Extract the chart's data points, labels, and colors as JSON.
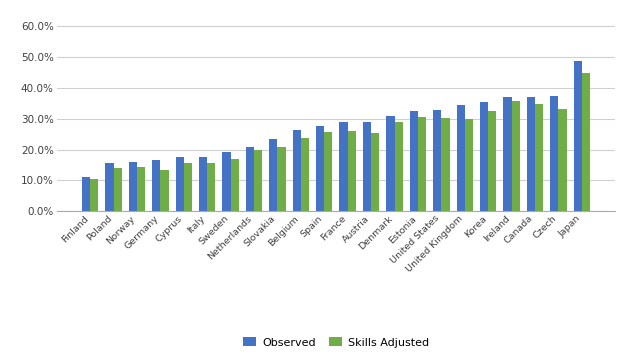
{
  "categories": [
    "Finland",
    "Poland",
    "Norway",
    "Germany",
    "Cyprus",
    "Italy",
    "Sweden",
    "Netherlands",
    "Slovakia",
    "Belgium",
    "Spain",
    "France",
    "Austria",
    "Denmark",
    "Estonia",
    "United States",
    "United Kingdom",
    "Korea",
    "Ireland",
    "Canada",
    "Czech",
    "Japan"
  ],
  "observed": [
    0.112,
    0.157,
    0.158,
    0.167,
    0.176,
    0.176,
    0.193,
    0.207,
    0.233,
    0.265,
    0.275,
    0.289,
    0.289,
    0.308,
    0.326,
    0.328,
    0.345,
    0.355,
    0.37,
    0.371,
    0.373,
    0.488
  ],
  "skills_adjusted": [
    0.105,
    0.14,
    0.143,
    0.134,
    0.156,
    0.155,
    0.17,
    0.197,
    0.207,
    0.237,
    0.258,
    0.261,
    0.254,
    0.288,
    0.306,
    0.303,
    0.3,
    0.326,
    0.358,
    0.348,
    0.333,
    0.45
  ],
  "observed_color": "#4472C4",
  "skills_adjusted_color": "#70AD47",
  "background_color": "#FFFFFF",
  "grid_color": "#D0D0D0",
  "ylim": [
    0.0,
    0.65
  ],
  "yticks": [
    0.0,
    0.1,
    0.2,
    0.3,
    0.4,
    0.5,
    0.6
  ],
  "legend_labels": [
    "Observed",
    "Skills Adjusted"
  ],
  "bar_width": 0.35,
  "xtick_fontsize": 6.8,
  "ytick_fontsize": 7.5
}
